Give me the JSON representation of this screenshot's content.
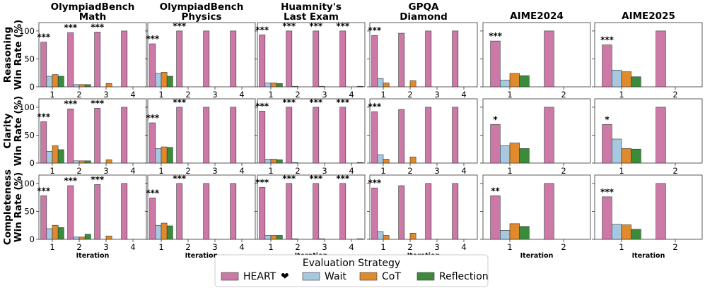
{
  "chart_data": {
    "type": "bar",
    "ylim": [
      0,
      115
    ],
    "yticks": [
      0,
      50,
      100
    ],
    "xlabel": "Iteration",
    "row_labels": [
      [
        "Reasoning",
        "Win Rate (%)"
      ],
      [
        "Clarity",
        "Win Rate (%)"
      ],
      [
        "Completeness",
        "Win Rate (%)"
      ]
    ],
    "columns": [
      {
        "title": [
          "OlympiadBench",
          "Math"
        ],
        "iterations": [
          "1",
          "2",
          "3",
          "4"
        ]
      },
      {
        "title": [
          "OlympiadBench",
          "Physics"
        ],
        "iterations": [
          "1",
          "2",
          "3",
          "4"
        ]
      },
      {
        "title": [
          "Huamnity's",
          "Last Exam"
        ],
        "iterations": [
          "1",
          "2",
          "3",
          "4"
        ]
      },
      {
        "title": [
          "GPQA",
          "Diamond"
        ],
        "iterations": [
          "1",
          "2",
          "3",
          "4"
        ]
      },
      {
        "title": [
          "AIME2024"
        ],
        "iterations": [
          "1",
          "2"
        ]
      },
      {
        "title": [
          "AIME2025"
        ],
        "iterations": [
          "1",
          "2"
        ]
      }
    ],
    "legend": {
      "title": "Evaluation Strategy",
      "heart_symbol": "❤",
      "entries": [
        {
          "name": "HEART",
          "color": "#cc79a7"
        },
        {
          "name": "Wait",
          "color": "#a6c8e0"
        },
        {
          "name": "CoT",
          "color": "#e08a2c"
        },
        {
          "name": "Reflection",
          "color": "#3a8c3a"
        }
      ]
    },
    "panels": [
      [
        {
          "HEART": [
            80,
            97,
            98,
            100
          ],
          "Wait": [
            19,
            4,
            0,
            0
          ],
          "CoT": [
            22,
            4,
            6,
            0
          ],
          "Reflection": [
            19,
            4,
            0,
            0
          ],
          "sig": [
            "***",
            "***",
            "***",
            ""
          ]
        },
        {
          "HEART": [
            77,
            100,
            100,
            100
          ],
          "Wait": [
            24,
            0,
            0,
            0
          ],
          "CoT": [
            26,
            0,
            0,
            0
          ],
          "Reflection": [
            19,
            0,
            0,
            0
          ],
          "sig": [
            "***",
            "***",
            "",
            ""
          ]
        },
        {
          "HEART": [
            93,
            100,
            100,
            100
          ],
          "Wait": [
            7,
            1,
            1,
            0
          ],
          "CoT": [
            7,
            0,
            0,
            0
          ],
          "Reflection": [
            6,
            0,
            0,
            1
          ],
          "sig": [
            "***",
            "***",
            "***",
            "***"
          ]
        },
        {
          "HEART": [
            92,
            96,
            100,
            100
          ],
          "Wait": [
            15,
            0,
            0,
            0
          ],
          "CoT": [
            7,
            11,
            0,
            0
          ],
          "Reflection": [
            0,
            0,
            0,
            0
          ],
          "sig": [
            "***",
            "",
            "",
            ""
          ]
        },
        {
          "HEART": [
            82,
            100
          ],
          "Wait": [
            12,
            0
          ],
          "CoT": [
            24,
            0
          ],
          "Reflection": [
            20,
            0
          ],
          "sig": [
            "***",
            ""
          ]
        },
        {
          "HEART": [
            75,
            100
          ],
          "Wait": [
            30,
            0
          ],
          "CoT": [
            27,
            0
          ],
          "Reflection": [
            18,
            0
          ],
          "sig": [
            "***",
            ""
          ]
        }
      ],
      [
        {
          "HEART": [
            74,
            97,
            98,
            100
          ],
          "Wait": [
            21,
            4,
            0,
            0
          ],
          "CoT": [
            31,
            4,
            6,
            0
          ],
          "Reflection": [
            24,
            4,
            0,
            0
          ],
          "sig": [
            "***",
            "***",
            "***",
            ""
          ]
        },
        {
          "HEART": [
            72,
            100,
            100,
            100
          ],
          "Wait": [
            26,
            0,
            0,
            0
          ],
          "CoT": [
            29,
            0,
            0,
            0
          ],
          "Reflection": [
            28,
            0,
            0,
            0
          ],
          "sig": [
            "***",
            "***",
            "",
            ""
          ]
        },
        {
          "HEART": [
            93,
            100,
            100,
            100
          ],
          "Wait": [
            7,
            1,
            0,
            0
          ],
          "CoT": [
            7,
            0,
            0,
            0
          ],
          "Reflection": [
            6,
            0,
            0,
            1
          ],
          "sig": [
            "***",
            "***",
            "***",
            "***"
          ]
        },
        {
          "HEART": [
            92,
            96,
            100,
            100
          ],
          "Wait": [
            15,
            0,
            0,
            0
          ],
          "CoT": [
            7,
            11,
            0,
            0
          ],
          "Reflection": [
            0,
            0,
            0,
            0
          ],
          "sig": [
            "***",
            "",
            "",
            ""
          ]
        },
        {
          "HEART": [
            69,
            100
          ],
          "Wait": [
            31,
            0
          ],
          "CoT": [
            36,
            0
          ],
          "Reflection": [
            26,
            0
          ],
          "sig": [
            "*",
            ""
          ]
        },
        {
          "HEART": [
            69,
            100
          ],
          "Wait": [
            43,
            0
          ],
          "CoT": [
            26,
            0
          ],
          "Reflection": [
            25,
            0
          ],
          "sig": [
            "*",
            ""
          ]
        }
      ],
      [
        {
          "HEART": [
            78,
            96,
            98,
            100
          ],
          "Wait": [
            19,
            4,
            0,
            0
          ],
          "CoT": [
            25,
            4,
            6,
            0
          ],
          "Reflection": [
            21,
            9,
            0,
            0
          ],
          "sig": [
            "***",
            "***",
            "***",
            ""
          ]
        },
        {
          "HEART": [
            74,
            100,
            100,
            100
          ],
          "Wait": [
            25,
            0,
            0,
            0
          ],
          "CoT": [
            29,
            0,
            0,
            0
          ],
          "Reflection": [
            24,
            0,
            0,
            0
          ],
          "sig": [
            "***",
            "***",
            "",
            ""
          ]
        },
        {
          "HEART": [
            93,
            100,
            100,
            100
          ],
          "Wait": [
            7,
            1,
            1,
            0
          ],
          "CoT": [
            7,
            0,
            0,
            0
          ],
          "Reflection": [
            7,
            0,
            0,
            1
          ],
          "sig": [
            "***",
            "***",
            "***",
            "***"
          ]
        },
        {
          "HEART": [
            92,
            96,
            100,
            100
          ],
          "Wait": [
            14,
            0,
            0,
            0
          ],
          "CoT": [
            7,
            11,
            0,
            0
          ],
          "Reflection": [
            0,
            0,
            0,
            0
          ],
          "sig": [
            "***",
            "",
            "",
            ""
          ]
        },
        {
          "HEART": [
            78,
            100
          ],
          "Wait": [
            16,
            0
          ],
          "CoT": [
            28,
            0
          ],
          "Reflection": [
            23,
            0
          ],
          "sig": [
            "**",
            ""
          ]
        },
        {
          "HEART": [
            76,
            100
          ],
          "Wait": [
            27,
            0
          ],
          "CoT": [
            26,
            0
          ],
          "Reflection": [
            18,
            0
          ],
          "sig": [
            "***",
            ""
          ]
        }
      ]
    ]
  }
}
